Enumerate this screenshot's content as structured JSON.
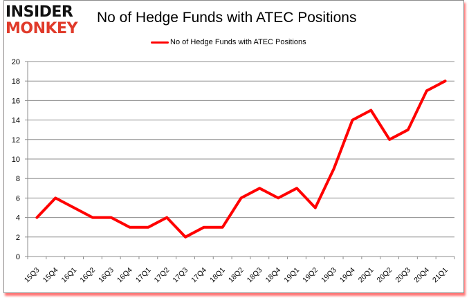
{
  "header": {
    "logo_line1": "INSIDER",
    "logo_line2": "MONKEY",
    "title": "No of Hedge Funds with ATEC Positions"
  },
  "legend": {
    "label": "No of Hedge Funds with ATEC Positions",
    "color": "#ff0000"
  },
  "chart_data": {
    "type": "line",
    "title": "No of Hedge Funds with ATEC Positions",
    "xlabel": "",
    "ylabel": "",
    "ylim": [
      0,
      20
    ],
    "yticks": [
      0,
      2,
      4,
      6,
      8,
      10,
      12,
      14,
      16,
      18,
      20
    ],
    "grid": true,
    "legend_position": "top",
    "categories": [
      "15Q3",
      "15Q4",
      "16Q1",
      "16Q2",
      "16Q3",
      "16Q4",
      "17Q1",
      "17Q2",
      "17Q3",
      "17Q4",
      "18Q1",
      "18Q2",
      "18Q3",
      "18Q4",
      "19Q1",
      "19Q2",
      "19Q3",
      "19Q4",
      "20Q1",
      "20Q2",
      "20Q3",
      "20Q4",
      "21Q1"
    ],
    "series": [
      {
        "name": "No of Hedge Funds with ATEC Positions",
        "color": "#ff0000",
        "values": [
          4,
          6,
          5,
          4,
          4,
          3,
          3,
          4,
          2,
          3,
          3,
          6,
          7,
          6,
          7,
          5,
          9,
          14,
          15,
          12,
          13,
          17,
          18
        ]
      }
    ]
  }
}
